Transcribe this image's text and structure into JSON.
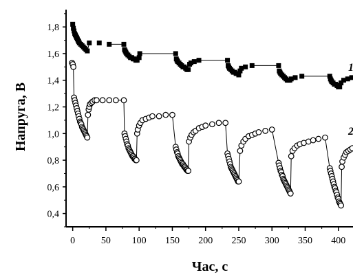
{
  "chart_data": {
    "type": "scatter",
    "xlabel": "Час, с",
    "ylabel": "Напруга, В",
    "xlim": [
      -10,
      422
    ],
    "ylim": [
      0.3,
      1.93
    ],
    "xticks": [
      "0",
      "50",
      "100",
      "150",
      "200",
      "250",
      "300",
      "350",
      "400"
    ],
    "xtick_values": [
      0,
      50,
      100,
      150,
      200,
      250,
      300,
      350,
      400
    ],
    "yticks": [
      "0,4",
      "0,6",
      "0,8",
      "1,0",
      "1,2",
      "1,4",
      "1,6",
      "1,8"
    ],
    "ytick_values": [
      0.4,
      0.6,
      0.8,
      1.0,
      1.2,
      1.4,
      1.6,
      1.8
    ],
    "grid": false,
    "series": [
      {
        "name": "1",
        "marker": "square-filled",
        "color": "#000000",
        "points": [
          [
            0,
            1.82
          ],
          [
            1,
            1.79
          ],
          [
            2,
            1.77
          ],
          [
            3,
            1.75
          ],
          [
            4,
            1.74
          ],
          [
            5,
            1.73
          ],
          [
            6,
            1.72
          ],
          [
            7,
            1.71
          ],
          [
            8,
            1.7
          ],
          [
            9,
            1.69
          ],
          [
            10,
            1.68
          ],
          [
            12,
            1.67
          ],
          [
            14,
            1.66
          ],
          [
            16,
            1.65
          ],
          [
            18,
            1.64
          ],
          [
            20,
            1.63
          ],
          [
            22,
            1.62
          ],
          [
            25,
            1.68
          ],
          [
            40,
            1.68
          ],
          [
            55,
            1.67
          ],
          [
            77,
            1.67
          ],
          [
            78,
            1.63
          ],
          [
            79,
            1.62
          ],
          [
            80,
            1.61
          ],
          [
            81,
            1.6
          ],
          [
            83,
            1.59
          ],
          [
            85,
            1.58
          ],
          [
            87,
            1.57
          ],
          [
            89,
            1.57
          ],
          [
            91,
            1.56
          ],
          [
            93,
            1.56
          ],
          [
            95,
            1.55
          ],
          [
            97,
            1.55
          ],
          [
            100,
            1.57
          ],
          [
            101,
            1.6
          ],
          [
            155,
            1.6
          ],
          [
            156,
            1.56
          ],
          [
            157,
            1.55
          ],
          [
            158,
            1.54
          ],
          [
            160,
            1.53
          ],
          [
            162,
            1.52
          ],
          [
            164,
            1.51
          ],
          [
            166,
            1.5
          ],
          [
            168,
            1.5
          ],
          [
            170,
            1.49
          ],
          [
            172,
            1.48
          ],
          [
            174,
            1.48
          ],
          [
            176,
            1.52
          ],
          [
            178,
            1.53
          ],
          [
            183,
            1.54
          ],
          [
            190,
            1.55
          ],
          [
            233,
            1.55
          ],
          [
            234,
            1.51
          ],
          [
            235,
            1.5
          ],
          [
            236,
            1.49
          ],
          [
            238,
            1.48
          ],
          [
            240,
            1.47
          ],
          [
            242,
            1.46
          ],
          [
            244,
            1.46
          ],
          [
            246,
            1.45
          ],
          [
            248,
            1.45
          ],
          [
            250,
            1.44
          ],
          [
            252,
            1.47
          ],
          [
            254,
            1.49
          ],
          [
            260,
            1.5
          ],
          [
            270,
            1.51
          ],
          [
            310,
            1.51
          ],
          [
            311,
            1.47
          ],
          [
            312,
            1.46
          ],
          [
            313,
            1.45
          ],
          [
            315,
            1.44
          ],
          [
            317,
            1.43
          ],
          [
            319,
            1.42
          ],
          [
            321,
            1.41
          ],
          [
            323,
            1.4
          ],
          [
            325,
            1.4
          ],
          [
            327,
            1.4
          ],
          [
            329,
            1.41
          ],
          [
            335,
            1.42
          ],
          [
            345,
            1.43
          ],
          [
            387,
            1.43
          ],
          [
            388,
            1.41
          ],
          [
            389,
            1.4
          ],
          [
            390,
            1.39
          ],
          [
            392,
            1.38
          ],
          [
            394,
            1.37
          ],
          [
            396,
            1.37
          ],
          [
            398,
            1.36
          ],
          [
            400,
            1.35
          ],
          [
            402,
            1.35
          ],
          [
            404,
            1.38
          ],
          [
            408,
            1.4
          ],
          [
            414,
            1.41
          ],
          [
            420,
            1.42
          ]
        ]
      },
      {
        "name": "2",
        "marker": "circle-open",
        "color": "#000000",
        "points": [
          [
            -1,
            1.53
          ],
          [
            0,
            1.52
          ],
          [
            1,
            1.5
          ],
          [
            2,
            1.27
          ],
          [
            3,
            1.25
          ],
          [
            4,
            1.23
          ],
          [
            5,
            1.21
          ],
          [
            6,
            1.19
          ],
          [
            7,
            1.17
          ],
          [
            8,
            1.15
          ],
          [
            9,
            1.13
          ],
          [
            10,
            1.11
          ],
          [
            11,
            1.09
          ],
          [
            12,
            1.08
          ],
          [
            13,
            1.07
          ],
          [
            14,
            1.05
          ],
          [
            15,
            1.04
          ],
          [
            16,
            1.03
          ],
          [
            17,
            1.02
          ],
          [
            18,
            1.01
          ],
          [
            19,
            1.0
          ],
          [
            20,
            0.99
          ],
          [
            21,
            0.98
          ],
          [
            22,
            0.97
          ],
          [
            23,
            1.14
          ],
          [
            24,
            1.18
          ],
          [
            25,
            1.2
          ],
          [
            26,
            1.22
          ],
          [
            28,
            1.23
          ],
          [
            30,
            1.24
          ],
          [
            33,
            1.25
          ],
          [
            36,
            1.25
          ],
          [
            45,
            1.25
          ],
          [
            55,
            1.25
          ],
          [
            65,
            1.25
          ],
          [
            77,
            1.25
          ],
          [
            78,
            1.0
          ],
          [
            79,
            0.98
          ],
          [
            80,
            0.96
          ],
          [
            81,
            0.94
          ],
          [
            82,
            0.92
          ],
          [
            83,
            0.91
          ],
          [
            84,
            0.89
          ],
          [
            85,
            0.88
          ],
          [
            86,
            0.87
          ],
          [
            87,
            0.86
          ],
          [
            88,
            0.85
          ],
          [
            89,
            0.84
          ],
          [
            90,
            0.83
          ],
          [
            91,
            0.83
          ],
          [
            92,
            0.82
          ],
          [
            93,
            0.81
          ],
          [
            94,
            0.81
          ],
          [
            95,
            0.8
          ],
          [
            96,
            0.8
          ],
          [
            97,
            1.0
          ],
          [
            98,
            1.03
          ],
          [
            100,
            1.06
          ],
          [
            102,
            1.08
          ],
          [
            105,
            1.1
          ],
          [
            110,
            1.11
          ],
          [
            115,
            1.12
          ],
          [
            120,
            1.13
          ],
          [
            130,
            1.13
          ],
          [
            140,
            1.14
          ],
          [
            150,
            1.14
          ],
          [
            155,
            0.9
          ],
          [
            156,
            0.88
          ],
          [
            157,
            0.86
          ],
          [
            158,
            0.85
          ],
          [
            159,
            0.83
          ],
          [
            160,
            0.82
          ],
          [
            161,
            0.81
          ],
          [
            162,
            0.8
          ],
          [
            163,
            0.79
          ],
          [
            164,
            0.78
          ],
          [
            165,
            0.77
          ],
          [
            166,
            0.77
          ],
          [
            167,
            0.76
          ],
          [
            168,
            0.75
          ],
          [
            169,
            0.75
          ],
          [
            170,
            0.74
          ],
          [
            171,
            0.73
          ],
          [
            172,
            0.73
          ],
          [
            173,
            0.72
          ],
          [
            174,
            0.72
          ],
          [
            175,
            0.94
          ],
          [
            177,
            0.97
          ],
          [
            179,
            0.99
          ],
          [
            182,
            1.01
          ],
          [
            185,
            1.02
          ],
          [
            190,
            1.04
          ],
          [
            195,
            1.05
          ],
          [
            200,
            1.06
          ],
          [
            210,
            1.07
          ],
          [
            220,
            1.08
          ],
          [
            230,
            1.08
          ],
          [
            233,
            0.85
          ],
          [
            234,
            0.83
          ],
          [
            235,
            0.81
          ],
          [
            236,
            0.79
          ],
          [
            237,
            0.77
          ],
          [
            238,
            0.75
          ],
          [
            239,
            0.74
          ],
          [
            240,
            0.73
          ],
          [
            241,
            0.72
          ],
          [
            242,
            0.71
          ],
          [
            243,
            0.7
          ],
          [
            244,
            0.69
          ],
          [
            245,
            0.68
          ],
          [
            246,
            0.67
          ],
          [
            247,
            0.66
          ],
          [
            248,
            0.65
          ],
          [
            249,
            0.64
          ],
          [
            250,
            0.64
          ],
          [
            252,
            0.87
          ],
          [
            254,
            0.91
          ],
          [
            257,
            0.94
          ],
          [
            260,
            0.96
          ],
          [
            265,
            0.98
          ],
          [
            270,
            0.99
          ],
          [
            275,
            1.0
          ],
          [
            280,
            1.01
          ],
          [
            290,
            1.02
          ],
          [
            300,
            1.03
          ],
          [
            310,
            0.78
          ],
          [
            311,
            0.76
          ],
          [
            312,
            0.74
          ],
          [
            313,
            0.72
          ],
          [
            314,
            0.71
          ],
          [
            315,
            0.69
          ],
          [
            316,
            0.68
          ],
          [
            317,
            0.66
          ],
          [
            318,
            0.65
          ],
          [
            319,
            0.64
          ],
          [
            320,
            0.63
          ],
          [
            321,
            0.62
          ],
          [
            322,
            0.61
          ],
          [
            323,
            0.6
          ],
          [
            324,
            0.59
          ],
          [
            325,
            0.58
          ],
          [
            326,
            0.57
          ],
          [
            327,
            0.56
          ],
          [
            328,
            0.55
          ],
          [
            329,
            0.83
          ],
          [
            331,
            0.87
          ],
          [
            334,
            0.89
          ],
          [
            338,
            0.91
          ],
          [
            342,
            0.92
          ],
          [
            348,
            0.93
          ],
          [
            355,
            0.94
          ],
          [
            362,
            0.95
          ],
          [
            370,
            0.96
          ],
          [
            380,
            0.97
          ],
          [
            387,
            0.74
          ],
          [
            388,
            0.72
          ],
          [
            389,
            0.7
          ],
          [
            390,
            0.68
          ],
          [
            391,
            0.66
          ],
          [
            392,
            0.64
          ],
          [
            393,
            0.62
          ],
          [
            394,
            0.6
          ],
          [
            395,
            0.59
          ],
          [
            396,
            0.57
          ],
          [
            397,
            0.56
          ],
          [
            398,
            0.54
          ],
          [
            399,
            0.52
          ],
          [
            400,
            0.51
          ],
          [
            401,
            0.49
          ],
          [
            402,
            0.48
          ],
          [
            403,
            0.47
          ],
          [
            404,
            0.46
          ],
          [
            405,
            0.75
          ],
          [
            406,
            0.79
          ],
          [
            408,
            0.82
          ],
          [
            410,
            0.84
          ],
          [
            412,
            0.86
          ],
          [
            415,
            0.87
          ],
          [
            418,
            0.88
          ],
          [
            421,
            0.89
          ]
        ]
      }
    ],
    "connectors": [
      {
        "series": "1",
        "from": [
          22,
          1.62
        ],
        "to": [
          25,
          1.68
        ]
      },
      {
        "series": "1",
        "from": [
          55,
          1.67
        ],
        "to": [
          77,
          1.67
        ]
      },
      {
        "series": "1",
        "from": [
          101,
          1.6
        ],
        "to": [
          155,
          1.6
        ]
      },
      {
        "series": "1",
        "from": [
          190,
          1.55
        ],
        "to": [
          233,
          1.55
        ]
      },
      {
        "series": "1",
        "from": [
          270,
          1.51
        ],
        "to": [
          310,
          1.51
        ]
      },
      {
        "series": "1",
        "from": [
          345,
          1.43
        ],
        "to": [
          387,
          1.43
        ]
      },
      {
        "series": "2",
        "from": [
          1,
          1.5
        ],
        "to": [
          2,
          1.27
        ]
      },
      {
        "series": "2",
        "from": [
          22,
          0.97
        ],
        "to": [
          23,
          1.14
        ]
      },
      {
        "series": "2",
        "from": [
          65,
          1.25
        ],
        "to": [
          77,
          1.25
        ]
      },
      {
        "series": "2",
        "from": [
          77,
          1.25
        ],
        "to": [
          78,
          1.0
        ]
      },
      {
        "series": "2",
        "from": [
          96,
          0.8
        ],
        "to": [
          97,
          1.0
        ]
      },
      {
        "series": "2",
        "from": [
          150,
          1.14
        ],
        "to": [
          155,
          0.9
        ]
      },
      {
        "series": "2",
        "from": [
          174,
          0.72
        ],
        "to": [
          175,
          0.94
        ]
      },
      {
        "series": "2",
        "from": [
          230,
          1.08
        ],
        "to": [
          233,
          0.85
        ]
      },
      {
        "series": "2",
        "from": [
          250,
          0.64
        ],
        "to": [
          252,
          0.87
        ]
      },
      {
        "series": "2",
        "from": [
          300,
          1.03
        ],
        "to": [
          310,
          0.78
        ]
      },
      {
        "series": "2",
        "from": [
          328,
          0.55
        ],
        "to": [
          329,
          0.83
        ]
      },
      {
        "series": "2",
        "from": [
          380,
          0.97
        ],
        "to": [
          387,
          0.74
        ]
      },
      {
        "series": "2",
        "from": [
          404,
          0.46
        ],
        "to": [
          405,
          0.75
        ]
      }
    ]
  }
}
